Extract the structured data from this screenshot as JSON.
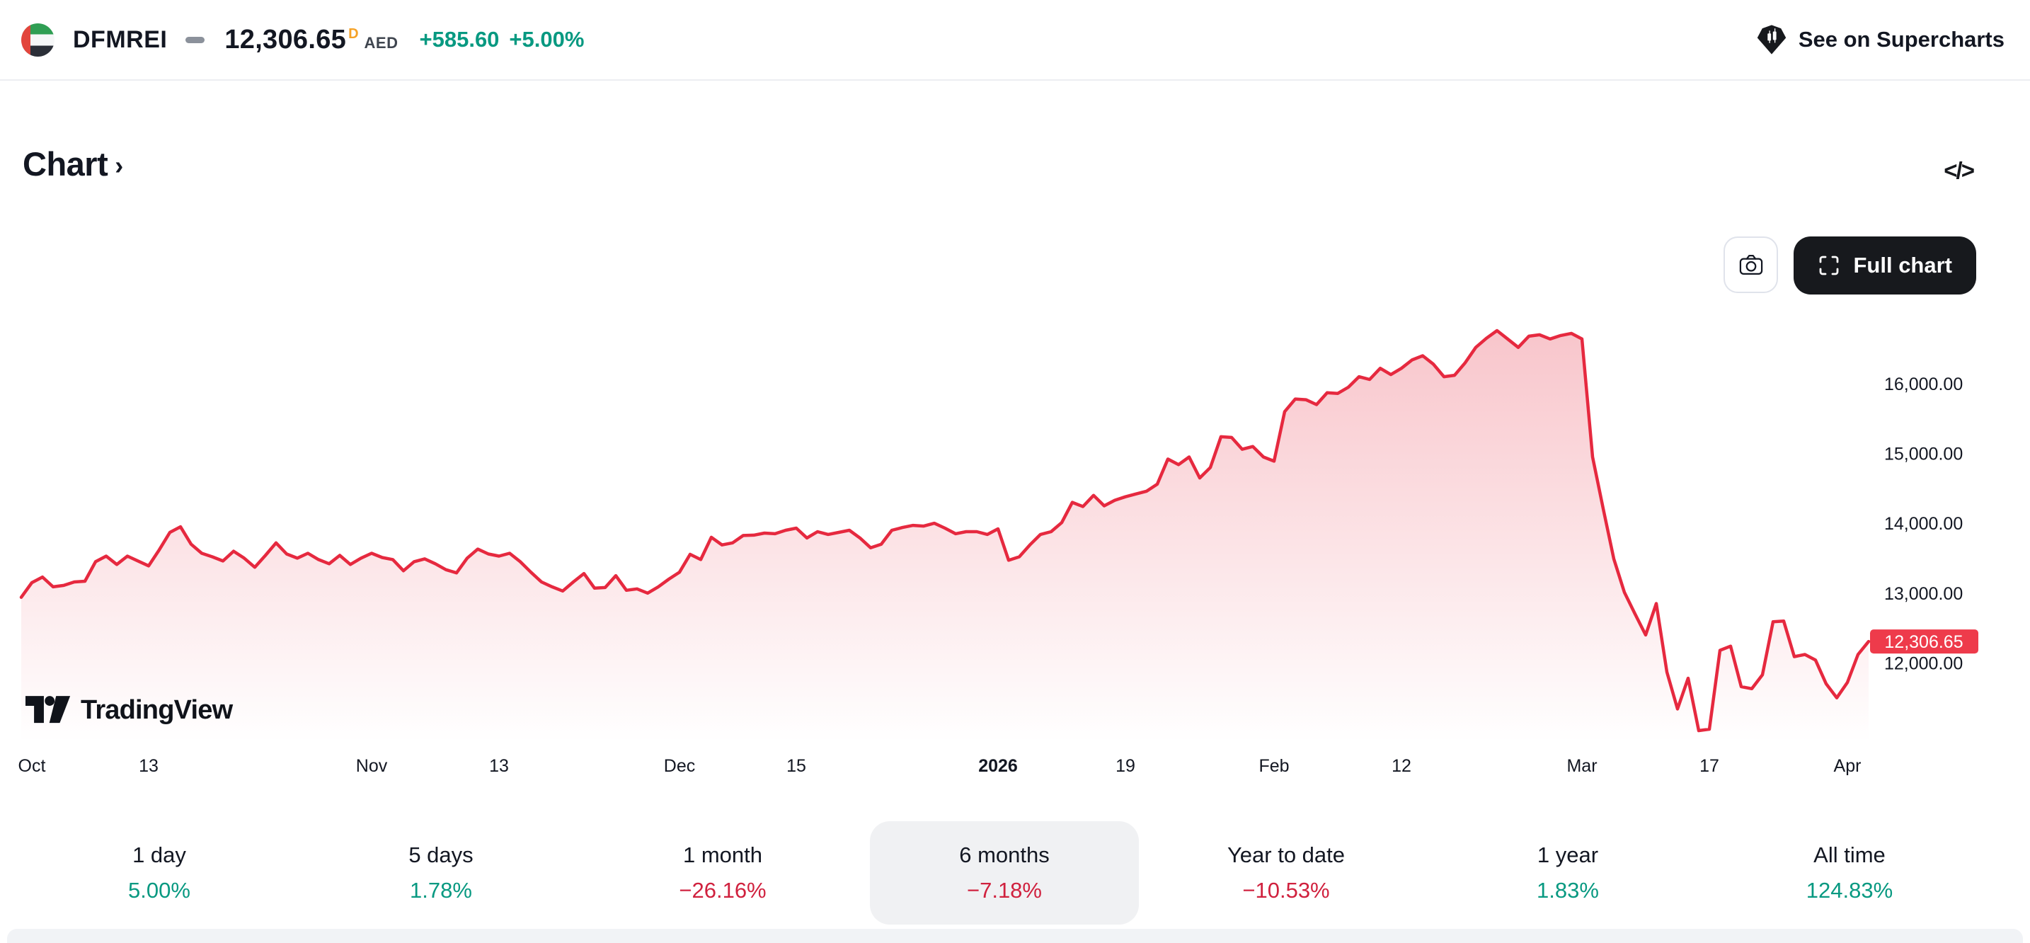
{
  "header": {
    "symbol": "DFMREI",
    "price": "12,306.65",
    "delayed_flag": "D",
    "currency": "AED",
    "change_abs": "+585.60",
    "change_pct": "+5.00%",
    "supercharts_label": "See on Supercharts"
  },
  "section": {
    "title": "Chart",
    "chevron": "›"
  },
  "icons": {
    "code": "</>"
  },
  "toolbar": {
    "full_chart_label": "Full chart"
  },
  "watermark": {
    "brand": "TradingView"
  },
  "colors": {
    "ink": "#131722",
    "green": "#089981",
    "down_red": "#d0213e",
    "line_red": "#e6293f",
    "badge_red": "#ee3b4b",
    "delayed_orange": "#f5a227"
  },
  "chart_data": {
    "type": "area",
    "series_name": "DFMREI 6 months",
    "ylim": [
      11030,
      16760
    ],
    "grid": false,
    "legend": false,
    "y_ticks": [
      {
        "value": 16000,
        "label": "16,000.00"
      },
      {
        "value": 15000,
        "label": "15,000.00"
      },
      {
        "value": 14000,
        "label": "14,000.00"
      },
      {
        "value": 13000,
        "label": "13,000.00"
      },
      {
        "value": 12000,
        "label": "12,000.00"
      }
    ],
    "x_ticks": [
      {
        "label": "Oct",
        "index": 1,
        "bold": false
      },
      {
        "label": "13",
        "index": 12,
        "bold": false
      },
      {
        "label": "Nov",
        "index": 33,
        "bold": false
      },
      {
        "label": "13",
        "index": 45,
        "bold": false
      },
      {
        "label": "Dec",
        "index": 62,
        "bold": false
      },
      {
        "label": "15",
        "index": 73,
        "bold": false
      },
      {
        "label": "2026",
        "index": 92,
        "bold": true
      },
      {
        "label": "19",
        "index": 104,
        "bold": false
      },
      {
        "label": "Feb",
        "index": 118,
        "bold": false
      },
      {
        "label": "12",
        "index": 130,
        "bold": false
      },
      {
        "label": "Mar",
        "index": 147,
        "bold": false
      },
      {
        "label": "17",
        "index": 159,
        "bold": false
      },
      {
        "label": "Apr",
        "index": 172,
        "bold": false
      }
    ],
    "last_price": {
      "value": 12306.65,
      "label": "12,306.65"
    },
    "values": [
      12940,
      13150,
      13230,
      13090,
      13110,
      13160,
      13170,
      13450,
      13530,
      13410,
      13530,
      13460,
      13390,
      13620,
      13870,
      13950,
      13700,
      13570,
      13520,
      13460,
      13600,
      13500,
      13370,
      13540,
      13720,
      13560,
      13500,
      13570,
      13480,
      13420,
      13540,
      13410,
      13500,
      13570,
      13510,
      13480,
      13320,
      13450,
      13490,
      13420,
      13335,
      13290,
      13500,
      13630,
      13560,
      13530,
      13570,
      13450,
      13300,
      13160,
      13090,
      13030,
      13160,
      13280,
      13070,
      13080,
      13250,
      13040,
      13060,
      13000,
      13090,
      13200,
      13300,
      13555,
      13480,
      13800,
      13690,
      13720,
      13825,
      13830,
      13860,
      13850,
      13900,
      13930,
      13790,
      13880,
      13840,
      13870,
      13900,
      13790,
      13650,
      13700,
      13900,
      13940,
      13970,
      13960,
      14000,
      13930,
      13850,
      13880,
      13880,
      13840,
      13920,
      13470,
      13520,
      13690,
      13840,
      13880,
      14010,
      14300,
      14240,
      14400,
      14250,
      14330,
      14380,
      14420,
      14460,
      14560,
      14920,
      14840,
      14950,
      14650,
      14800,
      15240,
      15230,
      15060,
      15100,
      14950,
      14890,
      15600,
      15780,
      15770,
      15700,
      15870,
      15860,
      15950,
      16100,
      16060,
      16220,
      16130,
      16220,
      16340,
      16400,
      16280,
      16100,
      16120,
      16300,
      16520,
      16650,
      16760,
      16640,
      16520,
      16680,
      16700,
      16640,
      16690,
      16720,
      16640,
      14950,
      14210,
      13490,
      13010,
      12700,
      12400,
      12850,
      11870,
      11340,
      11780,
      11030,
      11050,
      12180,
      12240,
      11660,
      11630,
      11830,
      12590,
      12600,
      12090,
      12120,
      12040,
      11700,
      11500,
      11720,
      12120,
      12306.65
    ]
  },
  "periods": [
    {
      "label": "1 day",
      "value": "5.00%",
      "direction": "up",
      "selected": false
    },
    {
      "label": "5 days",
      "value": "1.78%",
      "direction": "up",
      "selected": false
    },
    {
      "label": "1 month",
      "value": "−26.16%",
      "direction": "down",
      "selected": false
    },
    {
      "label": "6 months",
      "value": "−7.18%",
      "direction": "down",
      "selected": true
    },
    {
      "label": "Year to date",
      "value": "−10.53%",
      "direction": "down",
      "selected": false
    },
    {
      "label": "1 year",
      "value": "1.83%",
      "direction": "up",
      "selected": false
    },
    {
      "label": "All time",
      "value": "124.83%",
      "direction": "up",
      "selected": false
    }
  ]
}
